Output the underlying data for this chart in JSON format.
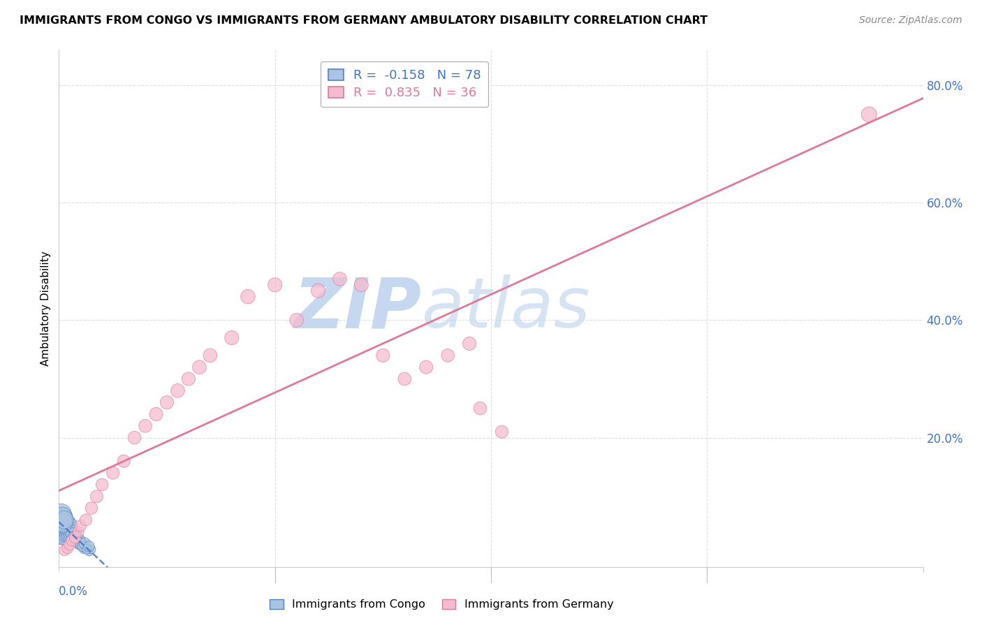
{
  "title": "IMMIGRANTS FROM CONGO VS IMMIGRANTS FROM GERMANY AMBULATORY DISABILITY CORRELATION CHART",
  "source": "Source: ZipAtlas.com",
  "ylabel": "Ambulatory Disability",
  "ytick_vals": [
    0.2,
    0.4,
    0.6,
    0.8
  ],
  "ytick_labels": [
    "20.0%",
    "40.0%",
    "60.0%",
    "80.0%"
  ],
  "xlim": [
    0.0,
    0.8
  ],
  "ylim": [
    -0.02,
    0.86
  ],
  "congo_R": -0.158,
  "congo_N": 78,
  "germany_R": 0.835,
  "germany_N": 36,
  "congo_color": "#aac4e2",
  "congo_edge_color": "#5580c0",
  "germany_color": "#f5bcd0",
  "germany_edge_color": "#e07898",
  "congo_trend_color": "#4472c4",
  "germany_trend_color": "#e07898",
  "watermark_zip_color": "#c5d8ef",
  "watermark_atlas_color": "#c5d8ef",
  "background_color": "#ffffff",
  "grid_color": "#dddddd",
  "tick_label_color": "#4472c4",
  "congo_x": [
    0.001,
    0.002,
    0.002,
    0.003,
    0.003,
    0.003,
    0.004,
    0.004,
    0.004,
    0.005,
    0.005,
    0.005,
    0.006,
    0.006,
    0.007,
    0.007,
    0.008,
    0.008,
    0.009,
    0.009,
    0.01,
    0.01,
    0.011,
    0.012,
    0.012,
    0.013,
    0.014,
    0.015,
    0.016,
    0.017,
    0.018,
    0.019,
    0.02,
    0.021,
    0.022,
    0.023,
    0.025,
    0.027,
    0.028,
    0.03,
    0.001,
    0.002,
    0.002,
    0.003,
    0.003,
    0.004,
    0.004,
    0.005,
    0.005,
    0.006,
    0.006,
    0.007,
    0.007,
    0.008,
    0.008,
    0.009,
    0.009,
    0.01,
    0.01,
    0.011,
    0.012,
    0.013,
    0.014,
    0.015,
    0.016,
    0.017,
    0.018,
    0.019,
    0.02,
    0.022,
    0.024,
    0.026,
    0.028,
    0.001,
    0.002,
    0.003,
    0.004,
    0.005
  ],
  "congo_y": [
    0.055,
    0.06,
    0.05,
    0.065,
    0.045,
    0.055,
    0.05,
    0.06,
    0.04,
    0.055,
    0.045,
    0.065,
    0.05,
    0.055,
    0.045,
    0.06,
    0.05,
    0.04,
    0.045,
    0.055,
    0.04,
    0.05,
    0.035,
    0.04,
    0.03,
    0.035,
    0.03,
    0.025,
    0.03,
    0.025,
    0.02,
    0.025,
    0.02,
    0.015,
    0.02,
    0.01,
    0.015,
    0.01,
    0.005,
    0.01,
    0.035,
    0.04,
    0.03,
    0.045,
    0.035,
    0.04,
    0.03,
    0.045,
    0.035,
    0.05,
    0.04,
    0.045,
    0.035,
    0.05,
    0.04,
    0.045,
    0.035,
    0.05,
    0.04,
    0.035,
    0.04,
    0.035,
    0.03,
    0.025,
    0.03,
    0.025,
    0.02,
    0.025,
    0.02,
    0.015,
    0.02,
    0.01,
    0.015,
    0.06,
    0.07,
    0.065,
    0.055,
    0.06
  ],
  "congo_sizes": [
    400,
    300,
    250,
    350,
    280,
    200,
    320,
    260,
    190,
    280,
    220,
    300,
    240,
    180,
    260,
    200,
    220,
    170,
    190,
    210,
    180,
    200,
    160,
    170,
    150,
    160,
    140,
    130,
    140,
    120,
    110,
    120,
    100,
    90,
    100,
    80,
    90,
    70,
    60,
    80,
    350,
    280,
    220,
    300,
    240,
    260,
    200,
    280,
    220,
    300,
    240,
    260,
    200,
    280,
    220,
    260,
    200,
    280,
    220,
    200,
    220,
    200,
    180,
    160,
    180,
    160,
    140,
    160,
    140,
    120,
    140,
    100,
    120,
    500,
    450,
    420,
    380,
    350
  ],
  "germany_x": [
    0.005,
    0.008,
    0.01,
    0.012,
    0.015,
    0.018,
    0.02,
    0.025,
    0.03,
    0.035,
    0.04,
    0.05,
    0.06,
    0.07,
    0.08,
    0.09,
    0.1,
    0.11,
    0.12,
    0.13,
    0.14,
    0.16,
    0.175,
    0.2,
    0.22,
    0.24,
    0.26,
    0.28,
    0.3,
    0.32,
    0.34,
    0.36,
    0.38,
    0.75,
    0.39,
    0.41
  ],
  "germany_y": [
    0.008,
    0.012,
    0.018,
    0.025,
    0.03,
    0.04,
    0.05,
    0.06,
    0.08,
    0.1,
    0.12,
    0.14,
    0.16,
    0.2,
    0.22,
    0.24,
    0.26,
    0.28,
    0.3,
    0.32,
    0.34,
    0.37,
    0.44,
    0.46,
    0.4,
    0.45,
    0.47,
    0.46,
    0.34,
    0.3,
    0.32,
    0.34,
    0.36,
    0.75,
    0.25,
    0.21
  ],
  "germany_sizes": [
    120,
    130,
    140,
    130,
    140,
    130,
    140,
    150,
    160,
    170,
    160,
    170,
    170,
    180,
    180,
    190,
    190,
    200,
    190,
    200,
    200,
    210,
    220,
    210,
    200,
    210,
    200,
    200,
    190,
    180,
    190,
    180,
    190,
    250,
    180,
    170
  ]
}
